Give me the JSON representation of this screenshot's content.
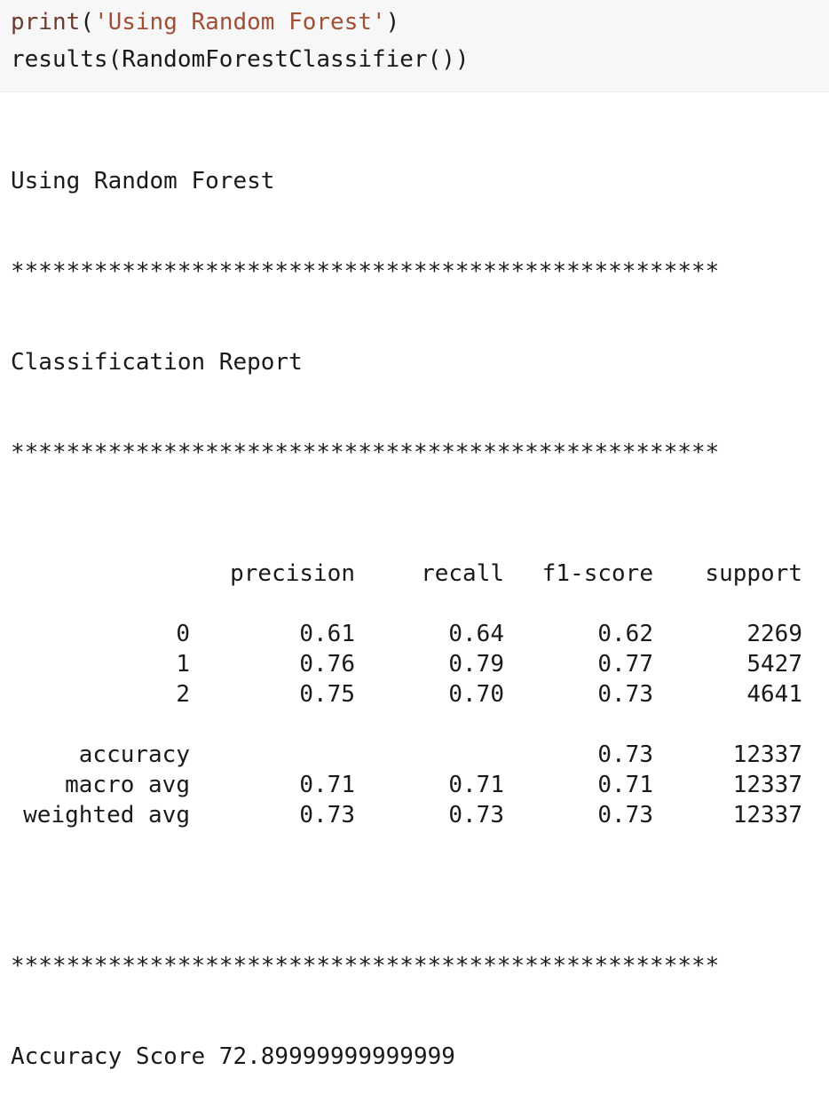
{
  "code": {
    "line1": {
      "func": "print",
      "open": "(",
      "string": "'Using Random Forest'",
      "close": ")"
    },
    "line2": "results(RandomForestClassifier())"
  },
  "output": {
    "heading": "Using Random Forest",
    "stars_top": "***************************************************",
    "report_title": "Classification Report",
    "stars_mid": "***************************************************",
    "columns": [
      "precision",
      "recall",
      "f1-score",
      "support"
    ],
    "rows": [
      {
        "label": "0",
        "precision": "0.61",
        "recall": "0.64",
        "f1": "0.62",
        "support": "2269"
      },
      {
        "label": "1",
        "precision": "0.76",
        "recall": "0.79",
        "f1": "0.77",
        "support": "5427"
      },
      {
        "label": "2",
        "precision": "0.75",
        "recall": "0.70",
        "f1": "0.73",
        "support": "4641"
      }
    ],
    "summary": [
      {
        "label": "accuracy",
        "precision": "",
        "recall": "",
        "f1": "0.73",
        "support": "12337"
      },
      {
        "label": "macro avg",
        "precision": "0.71",
        "recall": "0.71",
        "f1": "0.71",
        "support": "12337"
      },
      {
        "label": "weighted avg",
        "precision": "0.73",
        "recall": "0.73",
        "f1": "0.73",
        "support": "12337"
      }
    ],
    "stars_bottom": "***************************************************",
    "accuracy_score": "Accuracy Score 72.89999999999999"
  }
}
